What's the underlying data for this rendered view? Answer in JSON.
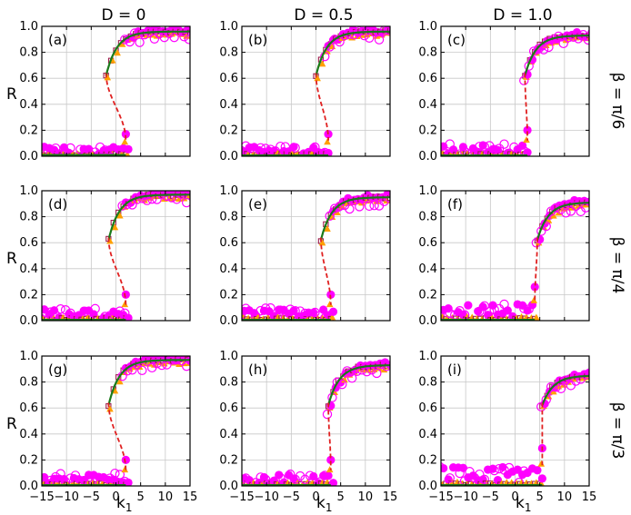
{
  "figure": {
    "col_titles": [
      "D = 0",
      "D = 0.5",
      "D = 1.0"
    ],
    "row_titles": [
      "β = π/6",
      "β = π/4",
      "β = π/3"
    ],
    "xlabel": "k",
    "xlabel_sub": "1",
    "ylabel": "R",
    "xticks": [
      "−15",
      "−10",
      "−5",
      "0",
      "5",
      "10",
      "15"
    ],
    "yticks": [
      "0.0",
      "0.2",
      "0.4",
      "0.6",
      "0.8",
      "1.0"
    ]
  },
  "colors": {
    "stable_branch": "#1a7a1a",
    "unstable_branch": "#e02020",
    "filled_circle": "#ff00ff",
    "open_circle": "#ff00ff",
    "triangle": "#ffa000",
    "square": "#a02050",
    "grid": "#c8c8c8"
  },
  "chart_data": [
    {
      "type": "scatter",
      "panel_label": "(a)",
      "xlim": [
        -15,
        15
      ],
      "ylim": [
        0,
        1
      ],
      "grid": true,
      "k_forward": 2.0,
      "k_backward": -2.0,
      "r_low": 0.05,
      "r_high": 0.96,
      "scatter_low": 0.04
    },
    {
      "type": "scatter",
      "panel_label": "(b)",
      "xlim": [
        -15,
        15
      ],
      "ylim": [
        0,
        1
      ],
      "grid": true,
      "k_forward": 2.5,
      "k_backward": 0.0,
      "r_low": 0.03,
      "r_high": 0.96,
      "scatter_low": 0.04
    },
    {
      "type": "scatter",
      "panel_label": "(c)",
      "xlim": [
        -15,
        15
      ],
      "ylim": [
        0,
        1
      ],
      "grid": true,
      "k_forward": 2.5,
      "k_backward": 2.0,
      "r_low": 0.03,
      "r_high": 0.93,
      "scatter_low": 0.05
    },
    {
      "type": "scatter",
      "panel_label": "(d)",
      "xlim": [
        -15,
        15
      ],
      "ylim": [
        0,
        1
      ],
      "grid": true,
      "k_forward": 2.0,
      "k_backward": -1.5,
      "r_low": 0.03,
      "r_high": 0.97,
      "scatter_low": 0.05
    },
    {
      "type": "scatter",
      "panel_label": "(e)",
      "xlim": [
        -15,
        15
      ],
      "ylim": [
        0,
        1
      ],
      "grid": true,
      "k_forward": 3.0,
      "k_backward": 1.0,
      "r_low": 0.03,
      "r_high": 0.95,
      "scatter_low": 0.05
    },
    {
      "type": "scatter",
      "panel_label": "(f)",
      "xlim": [
        -15,
        15
      ],
      "ylim": [
        0,
        1
      ],
      "grid": true,
      "k_forward": 4.0,
      "k_backward": 4.5,
      "r_low": 0.03,
      "r_high": 0.91,
      "scatter_low": 0.07
    },
    {
      "type": "scatter",
      "panel_label": "(g)",
      "xlim": [
        -15,
        15
      ],
      "ylim": [
        0,
        1
      ],
      "grid": true,
      "k_forward": 2.0,
      "k_backward": -1.5,
      "r_low": 0.03,
      "r_high": 0.97,
      "scatter_low": 0.05
    },
    {
      "type": "scatter",
      "panel_label": "(h)",
      "xlim": [
        -15,
        15
      ],
      "ylim": [
        0,
        1
      ],
      "grid": true,
      "k_forward": 3.0,
      "k_backward": 2.5,
      "r_low": 0.03,
      "r_high": 0.93,
      "scatter_low": 0.05
    },
    {
      "type": "scatter",
      "panel_label": "(i)",
      "xlim": [
        -15,
        15
      ],
      "ylim": [
        0,
        1
      ],
      "grid": true,
      "k_forward": 5.5,
      "k_backward": 5.5,
      "r_low": 0.03,
      "r_high": 0.85,
      "scatter_low": 0.08
    }
  ]
}
